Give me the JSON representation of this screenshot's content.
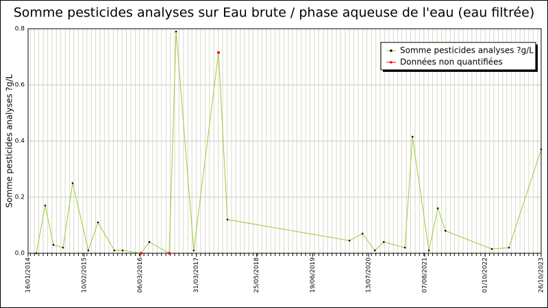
{
  "chart_data": {
    "type": "line",
    "title": "Somme pesticides analyses sur Eau brute / phase aqueuse de l'eau (eau filtrée)",
    "y_label": "Somme pesticides analyses ?g/L",
    "x": [
      "2014-03-14",
      "2014-05-15",
      "2014-07-11",
      "2014-09-16",
      "2014-11-22",
      "2015-03-11",
      "2015-05-17",
      "2015-09-08",
      "2015-11-05",
      "2016-03-12",
      "2016-05-09",
      "2016-09-24",
      "2016-11-11",
      "2017-03-14",
      "2017-09-02",
      "2017-11-03",
      "2020-03-01",
      "2020-05-31",
      "2020-08-25",
      "2020-10-26",
      "2021-03-22",
      "2021-05-14",
      "2021-09-05",
      "2021-11-06",
      "2021-12-29",
      "2022-11-17",
      "2023-03-16",
      "2023-10-26"
    ],
    "series": [
      {
        "name": "Somme pesticides analyses ?g/L",
        "color": "#99cc33",
        "marker_color": "#000000",
        "values": [
          0,
          0.17,
          0.03,
          0.02,
          0.25,
          0.01,
          0.11,
          0.01,
          0.01,
          0,
          0.04,
          0,
          0.79,
          0.01,
          0.715,
          0.12,
          0.045,
          0.07,
          0.01,
          0.04,
          0.02,
          0.415,
          0.01,
          0.16,
          0.08,
          0.015,
          0.02,
          0.37
        ]
      },
      {
        "name": "Données non quantifiées",
        "color": "#ff0000",
        "values": [
          null,
          null,
          null,
          null,
          null,
          null,
          null,
          null,
          null,
          0,
          null,
          0,
          null,
          null,
          0.715,
          null,
          null,
          null,
          null,
          null,
          null,
          null,
          null,
          null,
          null,
          null,
          null,
          null
        ]
      }
    ],
    "xlim": [
      "2014-01-16",
      "2023-10-26"
    ],
    "xticks": [
      {
        "value": "2014-01-16",
        "label": "16/01/2014"
      },
      {
        "value": "2015-02-10",
        "label": "10/02/2015"
      },
      {
        "value": "2016-03-06",
        "label": "06/03/2016"
      },
      {
        "value": "2017-03-31",
        "label": "31/03/2017"
      },
      {
        "value": "2018-05-25",
        "label": "25/05/2018"
      },
      {
        "value": "2019-06-19",
        "label": "19/06/2019"
      },
      {
        "value": "2020-07-13",
        "label": "13/07/2020"
      },
      {
        "value": "2021-08-07",
        "label": "07/08/2021"
      },
      {
        "value": "2022-10-01",
        "label": "01/10/2022"
      },
      {
        "value": "2023-10-26",
        "label": "26/10/2023"
      }
    ],
    "ylim": [
      0,
      0.8
    ],
    "yticks": [
      {
        "value": 0,
        "label": "0.0"
      },
      0.2,
      0.4,
      0.6,
      0.8
    ],
    "grid": true,
    "legend": "top-right"
  }
}
